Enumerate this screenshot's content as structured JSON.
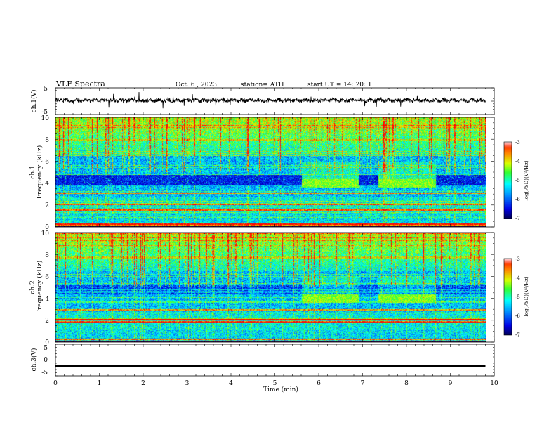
{
  "header": {
    "title": "VLF  Spectra",
    "date": "Oct. 6  , 2023",
    "station": "station= ATH",
    "start_ut": "start  UT  =    14: 20: 1"
  },
  "chart_data": [
    {
      "type": "line",
      "panel": "ch1-waveform",
      "ylabel": "ch.1(V)",
      "ylim": [
        -5,
        5
      ],
      "y_ticks": [
        "5",
        "-5"
      ],
      "xlim": [
        0,
        10
      ],
      "x_end": 9.8,
      "baseline": 0.3,
      "color": "#000000"
    },
    {
      "type": "heatmap",
      "panel": "ch1-spectrogram",
      "ylabel": "ch.1\nFrequency (kHz)",
      "ylim": [
        0,
        10
      ],
      "y_ticks": [
        "0",
        "2",
        "4",
        "6",
        "8",
        "10"
      ],
      "xlim": [
        0,
        10
      ],
      "x_end": 9.8,
      "colorbar": {
        "label": "log(PSD)(V²/Hz)",
        "range": [
          -7,
          -3
        ],
        "ticks": [
          "-3",
          "-4",
          "-5",
          "-6",
          "-7"
        ]
      },
      "features": {
        "quiet_band_khz": [
          3.8,
          4.8
        ],
        "quiet_band_intervals_min": [
          [
            0,
            5.6
          ],
          [
            6.9,
            7.35
          ],
          [
            8.65,
            9.8
          ]
        ],
        "active_band_intervals_min": [
          [
            5.6,
            6.9
          ],
          [
            7.35,
            8.65
          ]
        ],
        "strong_lines_khz": [
          0.15,
          0.3,
          1.6,
          2.1,
          3.1
        ]
      }
    },
    {
      "type": "heatmap",
      "panel": "ch2-spectrogram",
      "ylabel": "ch.2\nFrequency (kHz)",
      "ylim": [
        0,
        10
      ],
      "y_ticks": [
        "0",
        "2",
        "4",
        "6",
        "8",
        "10"
      ],
      "xlim": [
        0,
        10
      ],
      "x_end": 9.8,
      "colorbar": {
        "label": "log(PSD)(V²/Hz)",
        "range": [
          -7,
          -3
        ],
        "ticks": [
          "-3",
          "-4",
          "-5",
          "-6",
          "-7"
        ]
      },
      "features": {
        "quiet_band_khz": [
          4.4,
          5.2
        ],
        "active_band_intervals_min": [
          [
            5.6,
            6.9
          ],
          [
            7.35,
            8.65
          ]
        ],
        "strong_lines_khz": [
          0.1,
          0.3,
          1.9,
          2.1,
          3.0
        ]
      }
    },
    {
      "type": "line",
      "panel": "ch3-waveform",
      "ylabel": "ch.3(V)",
      "ylim": [
        -5,
        5
      ],
      "y_ticks": [
        "5",
        "0",
        "-5"
      ],
      "xlim": [
        0,
        10
      ],
      "x_end": 9.8,
      "baseline": -2.0,
      "color": "#000000",
      "xlabel": "Time  (min)",
      "x_ticks": [
        "0",
        "1",
        "2",
        "3",
        "4",
        "5",
        "6",
        "7",
        "8",
        "9",
        "10"
      ]
    }
  ]
}
